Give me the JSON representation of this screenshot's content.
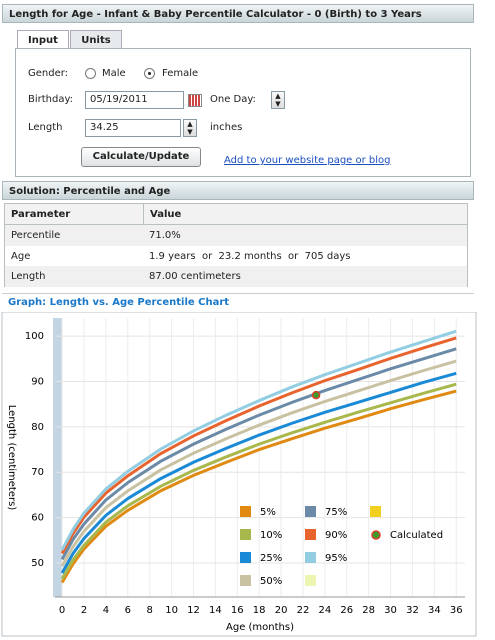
{
  "header": {
    "title": "Length for Age  - Infant & Baby Percentile Calculator - 0 (Birth) to 3 Years"
  },
  "tabs": [
    "Input",
    "Units"
  ],
  "form": {
    "gender_label": "Gender:",
    "gender_options": [
      "Male",
      "Female"
    ],
    "birthday_label": "Birthday:",
    "birthday": "05/19/2011",
    "one_day_label": "One Day:",
    "length_label": "Length",
    "length": "34.25",
    "length_unit": "inches",
    "button": "Calculate/Update",
    "link": "Add to your website page or blog"
  },
  "solution": {
    "title": "Solution: Percentile and Age",
    "columns": [
      "Parameter",
      "Value"
    ],
    "rows": [
      [
        "Percentile",
        "71.0%"
      ],
      [
        "Age",
        "1.9 years  or  23.2 months  or  705 days"
      ],
      [
        "Length",
        "87.00 centimeters"
      ]
    ]
  },
  "chart_data": {
    "type": "line",
    "title": "Graph: Length vs. Age Percentile Chart",
    "x_label": "Age (months)",
    "y_label": "Length (centimeters)",
    "x": [
      0,
      1,
      2,
      4,
      6,
      9,
      12,
      15,
      18,
      21,
      24,
      27,
      30,
      33,
      36
    ],
    "xlim": [
      -0.65,
      36.8
    ],
    "xticks": [
      0,
      2,
      4,
      6,
      8,
      10,
      12,
      14,
      16,
      18,
      20,
      22,
      24,
      26,
      28,
      30,
      32,
      34,
      36
    ],
    "ylim": [
      42.5,
      104
    ],
    "yticks": [
      50,
      60,
      70,
      80,
      90,
      100
    ],
    "grid": true,
    "series": [
      {
        "name": "5%",
        "color": "#e08a12",
        "values": [
          45.7,
          49.8,
          53.1,
          58.1,
          61.6,
          65.9,
          69.3,
          72.2,
          75.0,
          77.4,
          79.7,
          81.8,
          84.0,
          86.0,
          87.9
        ]
      },
      {
        "name": "10%",
        "color": "#a9b84c",
        "values": [
          46.5,
          50.7,
          53.9,
          59.0,
          62.6,
          66.9,
          70.4,
          73.4,
          76.2,
          78.7,
          81.0,
          83.2,
          85.3,
          87.4,
          89.4
        ]
      },
      {
        "name": "25%",
        "color": "#1a8ad6",
        "values": [
          47.8,
          52.1,
          55.4,
          60.5,
          64.2,
          68.6,
          72.2,
          75.3,
          78.2,
          80.8,
          83.2,
          85.4,
          87.6,
          89.8,
          91.8
        ]
      },
      {
        "name": "50%",
        "color": "#c9c2a2",
        "values": [
          49.3,
          53.6,
          57.0,
          62.2,
          65.9,
          70.5,
          74.2,
          77.4,
          80.4,
          83.1,
          85.6,
          87.9,
          90.2,
          92.4,
          94.5
        ]
      },
      {
        "name": "75%",
        "color": "#6a8aa8",
        "values": [
          50.8,
          55.2,
          58.6,
          63.9,
          67.7,
          72.4,
          76.2,
          79.5,
          82.6,
          85.4,
          88.0,
          90.4,
          92.8,
          95.0,
          97.2
        ]
      },
      {
        "name": "90%",
        "color": "#e8642e",
        "values": [
          52.1,
          56.5,
          60.1,
          65.4,
          69.2,
          74.1,
          78.0,
          81.4,
          84.6,
          87.5,
          90.2,
          92.6,
          95.1,
          97.4,
          99.6
        ]
      },
      {
        "name": "95%",
        "color": "#92cde2",
        "values": [
          52.9,
          57.4,
          61.0,
          66.3,
          70.2,
          75.1,
          79.1,
          82.6,
          85.8,
          88.8,
          91.5,
          94.0,
          96.5,
          98.8,
          101.1
        ]
      }
    ],
    "point": {
      "name": "Calculated",
      "x": 23.2,
      "value": 87.0,
      "color": "#3f9a2c",
      "edge": "#d8402a"
    }
  }
}
